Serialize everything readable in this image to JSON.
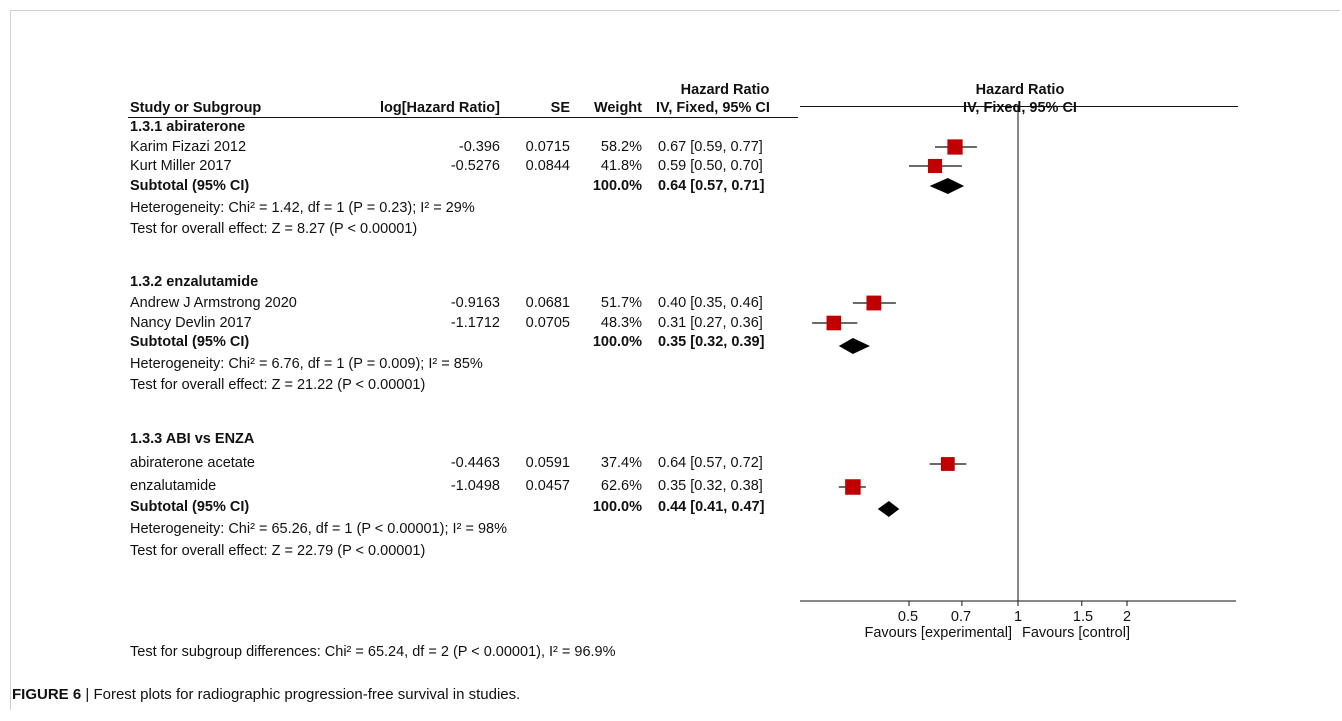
{
  "headers": {
    "study": "Study or Subgroup",
    "loghr": "log[Hazard Ratio]",
    "se": "SE",
    "weight": "Weight",
    "hr_top": "Hazard Ratio",
    "hr_bottom": "IV, Fixed, 95% CI",
    "plot_top": "Hazard Ratio",
    "plot_bottom": "IV, Fixed, 95% CI"
  },
  "footer": {
    "subgroup_test": "Test for subgroup differences: Chi² = 65.24, df = 2 (P < 0.00001), I² = 96.9%"
  },
  "caption": {
    "label": "FIGURE 6",
    "separator": "|",
    "text": "Forest plots for radiographic progression-free survival in studies."
  },
  "colors": {
    "study_marker": "#c00000",
    "diamond": "#000000"
  },
  "chart_data": {
    "type": "forest",
    "xscale": "log",
    "xlim": [
      0.25,
      4
    ],
    "ticks": [
      0.5,
      0.7,
      1,
      1.5,
      2
    ],
    "tick_labels": [
      "0.5",
      "0.7",
      "1",
      "1.5",
      "2"
    ],
    "favours_left": "Favours [experimental]",
    "favours_right": "Favours [control]",
    "groups": [
      {
        "title": "1.3.1 abiraterone",
        "studies": [
          {
            "name": "Karim Fizazi 2012",
            "loghr": "-0.396",
            "se": "0.0715",
            "weight": "58.2%",
            "ci_text": "0.67 [0.59, 0.77]",
            "hr": 0.67,
            "lo": 0.59,
            "hi": 0.77,
            "w": 58.2
          },
          {
            "name": "Kurt Miller 2017",
            "loghr": "-0.5276",
            "se": "0.0844",
            "weight": "41.8%",
            "ci_text": "0.59 [0.50, 0.70]",
            "hr": 0.59,
            "lo": 0.5,
            "hi": 0.7,
            "w": 41.8
          }
        ],
        "subtotal": {
          "label": "Subtotal (95% CI)",
          "weight": "100.0%",
          "ci_text": "0.64 [0.57, 0.71]",
          "hr": 0.64,
          "lo": 0.57,
          "hi": 0.71
        },
        "heterogeneity": "Heterogeneity: Chi² = 1.42, df = 1 (P = 0.23); I² = 29%",
        "overall": "Test for overall effect: Z = 8.27 (P < 0.00001)"
      },
      {
        "title": "1.3.2 enzalutamide",
        "studies": [
          {
            "name": "Andrew J Armstrong 2020",
            "loghr": "-0.9163",
            "se": "0.0681",
            "weight": "51.7%",
            "ci_text": "0.40 [0.35, 0.46]",
            "hr": 0.4,
            "lo": 0.35,
            "hi": 0.46,
            "w": 51.7
          },
          {
            "name": "Nancy Devlin 2017",
            "loghr": "-1.1712",
            "se": "0.0705",
            "weight": "48.3%",
            "ci_text": "0.31 [0.27, 0.36]",
            "hr": 0.31,
            "lo": 0.27,
            "hi": 0.36,
            "w": 48.3
          }
        ],
        "subtotal": {
          "label": "Subtotal (95% CI)",
          "weight": "100.0%",
          "ci_text": "0.35 [0.32, 0.39]",
          "hr": 0.35,
          "lo": 0.32,
          "hi": 0.39
        },
        "heterogeneity": "Heterogeneity: Chi² = 6.76, df = 1 (P = 0.009); I² = 85%",
        "overall": "Test for overall effect: Z = 21.22 (P < 0.00001)"
      },
      {
        "title": "1.3.3 ABI vs ENZA",
        "studies": [
          {
            "name": "abiraterone acetate",
            "loghr": "-0.4463",
            "se": "0.0591",
            "weight": "37.4%",
            "ci_text": "0.64 [0.57, 0.72]",
            "hr": 0.64,
            "lo": 0.57,
            "hi": 0.72,
            "w": 37.4
          },
          {
            "name": "enzalutamide",
            "loghr": "-1.0498",
            "se": "0.0457",
            "weight": "62.6%",
            "ci_text": "0.35 [0.32, 0.38]",
            "hr": 0.35,
            "lo": 0.32,
            "hi": 0.38,
            "w": 62.6
          }
        ],
        "subtotal": {
          "label": "Subtotal (95% CI)",
          "weight": "100.0%",
          "ci_text": "0.44 [0.41, 0.47]",
          "hr": 0.44,
          "lo": 0.41,
          "hi": 0.47
        },
        "heterogeneity": "Heterogeneity: Chi² = 65.26, df = 1 (P < 0.00001); I² = 98%",
        "overall": "Test for overall effect: Z = 22.79 (P < 0.00001)"
      }
    ]
  }
}
